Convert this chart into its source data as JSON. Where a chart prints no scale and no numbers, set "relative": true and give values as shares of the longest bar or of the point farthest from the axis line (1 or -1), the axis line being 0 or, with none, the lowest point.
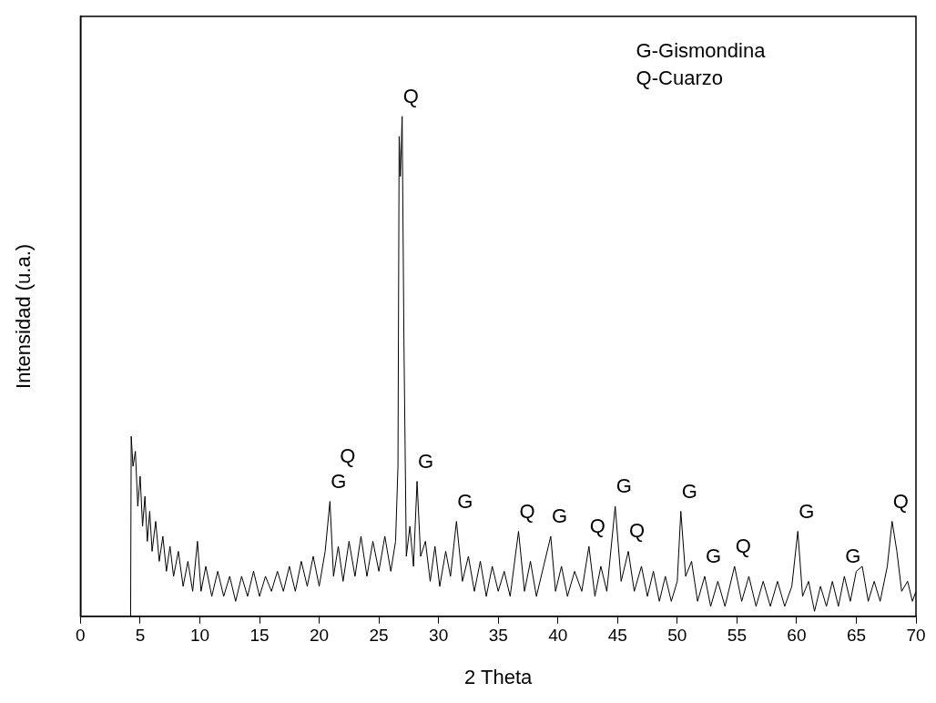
{
  "chart_data": {
    "type": "line",
    "relative": true,
    "xlabel": "2 Theta",
    "ylabel": "Intensidad (u.a.)",
    "xlim": [
      0,
      70
    ],
    "xticks": [
      0,
      5,
      10,
      15,
      20,
      25,
      30,
      35,
      40,
      45,
      50,
      55,
      60,
      65,
      70
    ],
    "marker": "none",
    "line_style": "solid",
    "legend": false,
    "x": [
      4.2,
      4.25,
      4.4,
      4.6,
      4.8,
      5.0,
      5.2,
      5.4,
      5.6,
      5.8,
      6.0,
      6.3,
      6.6,
      6.9,
      7.2,
      7.5,
      7.8,
      8.2,
      8.6,
      9.0,
      9.4,
      9.8,
      10.1,
      10.5,
      11,
      11.5,
      12,
      12.5,
      13,
      13.5,
      14,
      14.5,
      15,
      15.5,
      16,
      16.5,
      17,
      17.5,
      18,
      18.5,
      19,
      19.5,
      20,
      20.5,
      20.9,
      21.2,
      21.6,
      22,
      22.5,
      23,
      23.5,
      24,
      24.5,
      25,
      25.5,
      26,
      26.4,
      26.6,
      26.7,
      26.8,
      26.95,
      27.1,
      27.3,
      27.6,
      27.9,
      28.2,
      28.5,
      28.9,
      29.3,
      29.7,
      30.1,
      30.6,
      31.0,
      31.5,
      32.0,
      32.5,
      33,
      33.5,
      34,
      34.5,
      35,
      35.5,
      36,
      36.7,
      37.2,
      37.7,
      38.2,
      38.8,
      39.4,
      39.8,
      40.3,
      40.8,
      41.4,
      42,
      42.6,
      43.1,
      43.6,
      44.1,
      44.8,
      45.3,
      45.9,
      46.4,
      47,
      47.5,
      48,
      48.5,
      49,
      49.5,
      50,
      50.3,
      50.7,
      51.2,
      51.7,
      52.3,
      52.8,
      53.4,
      54,
      54.8,
      55.4,
      56,
      56.6,
      57.2,
      57.8,
      58.4,
      59,
      59.6,
      60.1,
      60.5,
      61,
      61.5,
      62,
      62.5,
      63,
      63.5,
      64,
      64.5,
      65,
      65.5,
      66,
      66.5,
      67,
      67.6,
      68.0,
      68.4,
      68.8,
      69.3,
      69.7,
      70
    ],
    "series": [
      {
        "color": "#000000",
        "values": [
          0,
          0.36,
          0.3,
          0.33,
          0.22,
          0.28,
          0.18,
          0.24,
          0.15,
          0.21,
          0.13,
          0.19,
          0.11,
          0.16,
          0.09,
          0.14,
          0.08,
          0.13,
          0.06,
          0.11,
          0.05,
          0.15,
          0.05,
          0.1,
          0.04,
          0.09,
          0.04,
          0.08,
          0.03,
          0.08,
          0.04,
          0.09,
          0.04,
          0.08,
          0.05,
          0.09,
          0.05,
          0.1,
          0.05,
          0.11,
          0.06,
          0.12,
          0.06,
          0.13,
          0.23,
          0.08,
          0.14,
          0.07,
          0.15,
          0.08,
          0.16,
          0.08,
          0.15,
          0.09,
          0.16,
          0.09,
          0.15,
          0.3,
          0.96,
          0.88,
          1.0,
          0.55,
          0.12,
          0.18,
          0.1,
          0.27,
          0.12,
          0.15,
          0.07,
          0.14,
          0.06,
          0.13,
          0.08,
          0.19,
          0.07,
          0.12,
          0.05,
          0.11,
          0.04,
          0.1,
          0.05,
          0.09,
          0.04,
          0.17,
          0.05,
          0.11,
          0.04,
          0.1,
          0.16,
          0.05,
          0.1,
          0.04,
          0.09,
          0.05,
          0.14,
          0.04,
          0.1,
          0.05,
          0.22,
          0.07,
          0.13,
          0.05,
          0.1,
          0.04,
          0.09,
          0.03,
          0.08,
          0.03,
          0.07,
          0.21,
          0.08,
          0.11,
          0.03,
          0.08,
          0.02,
          0.07,
          0.02,
          0.1,
          0.03,
          0.08,
          0.02,
          0.07,
          0.02,
          0.07,
          0.02,
          0.06,
          0.17,
          0.04,
          0.07,
          0.01,
          0.06,
          0.02,
          0.07,
          0.02,
          0.08,
          0.03,
          0.09,
          0.1,
          0.03,
          0.07,
          0.03,
          0.1,
          0.19,
          0.13,
          0.05,
          0.07,
          0.03,
          0.05
        ]
      }
    ],
    "annotations": [
      "G-Gismondina",
      "Q-Cuarzo",
      {
        "text": "Q",
        "x": 26.95,
        "y": 1.0
      },
      {
        "text": "G",
        "x": 20.9,
        "y": 0.23
      },
      {
        "text": "Q",
        "x": 20.9,
        "y": 0.23
      },
      {
        "text": "G",
        "x": 28.2,
        "y": 0.27
      },
      {
        "text": "G",
        "x": 31.5,
        "y": 0.19
      },
      {
        "text": "Q",
        "x": 36.7,
        "y": 0.17
      },
      {
        "text": "G",
        "x": 39.4,
        "y": 0.16
      },
      {
        "text": "Q",
        "x": 42.6,
        "y": 0.14
      },
      {
        "text": "G",
        "x": 44.8,
        "y": 0.22
      },
      {
        "text": "Q",
        "x": 45.9,
        "y": 0.13
      },
      {
        "text": "G",
        "x": 50.3,
        "y": 0.21
      },
      {
        "text": "G",
        "x": 52.3,
        "y": 0.08
      },
      {
        "text": "Q",
        "x": 54.8,
        "y": 0.1
      },
      {
        "text": "G",
        "x": 60.1,
        "y": 0.17
      },
      {
        "text": "G",
        "x": 64,
        "y": 0.08
      },
      {
        "text": "Q",
        "x": 68.0,
        "y": 0.19
      }
    ]
  }
}
